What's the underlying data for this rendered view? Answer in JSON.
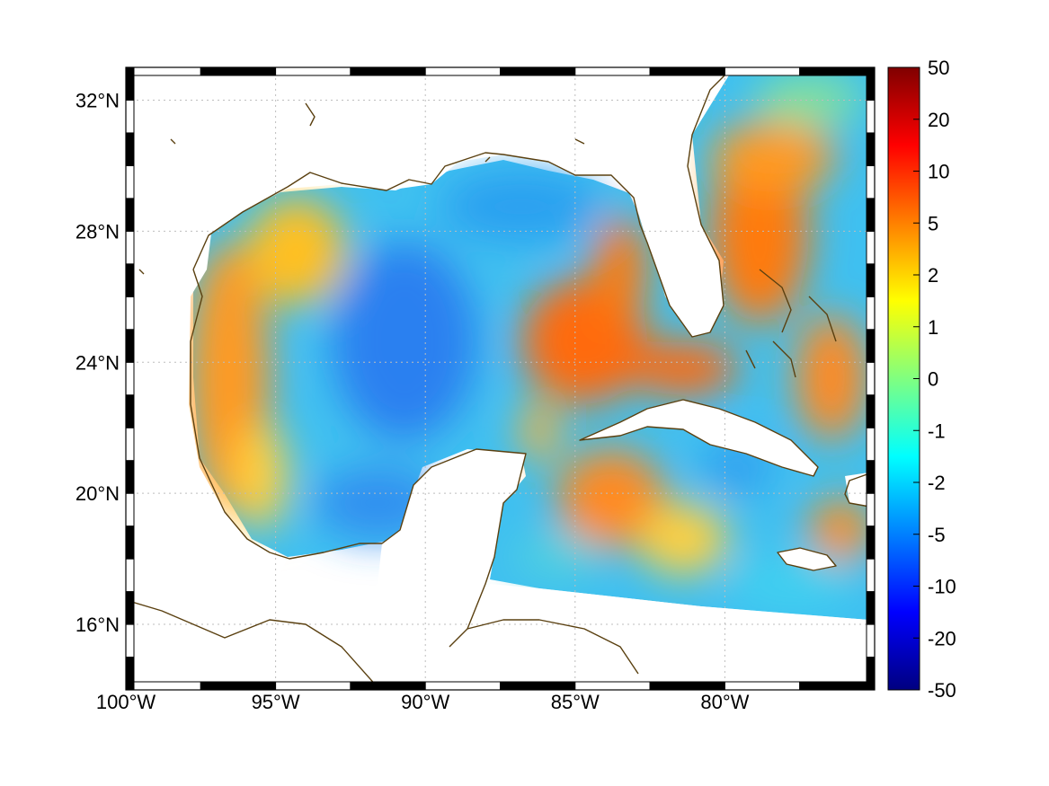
{
  "map": {
    "lon_range": [
      -100,
      -75
    ],
    "lat_range": [
      14,
      33
    ],
    "lon_ticks": [
      {
        "value": -100,
        "label": "100°W"
      },
      {
        "value": -95,
        "label": "95°W"
      },
      {
        "value": -90,
        "label": "90°W"
      },
      {
        "value": -85,
        "label": "85°W"
      },
      {
        "value": -80,
        "label": "80°W"
      }
    ],
    "lat_ticks": [
      {
        "value": 16,
        "label": "16°N"
      },
      {
        "value": 20,
        "label": "20°N"
      },
      {
        "value": 24,
        "label": "24°N"
      },
      {
        "value": 28,
        "label": "28°N"
      },
      {
        "value": 32,
        "label": "32°N"
      }
    ],
    "grid": true,
    "frame_style": "alternating black/white"
  },
  "colorbar": {
    "colormap": "jet",
    "orientation": "vertical",
    "placement": "right",
    "tick_labels": [
      "50",
      "20",
      "10",
      "5",
      "2",
      "1",
      "0",
      "-1",
      "-2",
      "-5",
      "-10",
      "-20",
      "-50"
    ],
    "colors": [
      "#800000",
      "#ff0000",
      "#ff8000",
      "#ffff00",
      "#80ff80",
      "#00ffff",
      "#0080ff",
      "#0000ff",
      "#000080"
    ]
  },
  "field_regions": [
    {
      "region": "western Gulf shelf",
      "level": "4"
    },
    {
      "region": "central Gulf",
      "level": "-4"
    },
    {
      "region": "Loop Current / eastern Gulf",
      "level": "6"
    },
    {
      "region": "Atlantic off Florida",
      "level": "5"
    },
    {
      "region": "central Caribbean",
      "level": "5"
    },
    {
      "region": "northeast Gulf",
      "level": "-2"
    }
  ]
}
